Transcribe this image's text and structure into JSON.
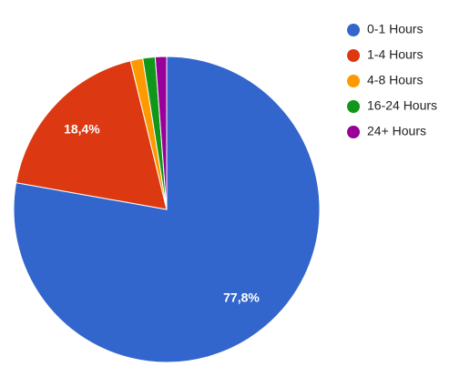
{
  "chart_data": {
    "type": "pie",
    "categories": [
      "0-1 Hours",
      "1-4 Hours",
      "4-8 Hours",
      "16-24 Hours",
      "24+ Hours"
    ],
    "values": [
      77.8,
      18.4,
      1.3,
      1.3,
      1.2
    ],
    "value_labels": [
      "77,8%",
      "18,4%",
      null,
      null,
      null
    ],
    "colors": [
      "#3366cc",
      "#dc3912",
      "#ff9900",
      "#109618",
      "#990099"
    ],
    "legend": "right"
  }
}
